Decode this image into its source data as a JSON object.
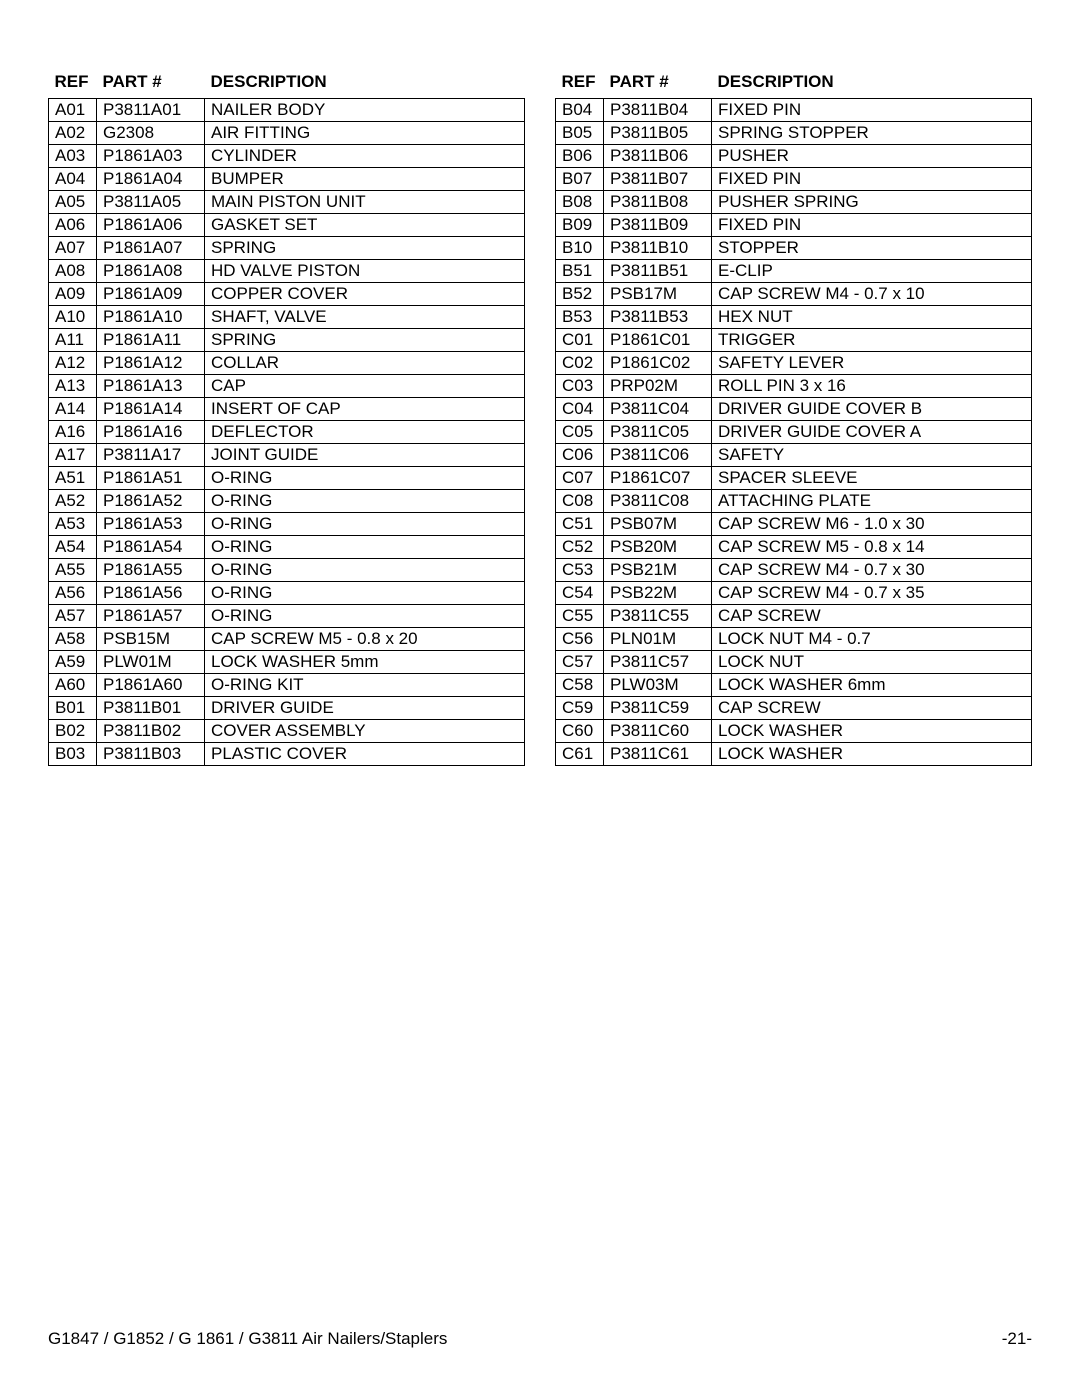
{
  "tables": {
    "left": {
      "headers": [
        "REF",
        "PART #",
        "DESCRIPTION"
      ],
      "rows": [
        [
          "A01",
          "P3811A01",
          "NAILER BODY"
        ],
        [
          "A02",
          "G2308",
          "AIR FITTING"
        ],
        [
          "A03",
          "P1861A03",
          "CYLINDER"
        ],
        [
          "A04",
          "P1861A04",
          "BUMPER"
        ],
        [
          "A05",
          "P3811A05",
          "MAIN PISTON UNIT"
        ],
        [
          "A06",
          "P1861A06",
          "GASKET SET"
        ],
        [
          "A07",
          "P1861A07",
          "SPRING"
        ],
        [
          "A08",
          "P1861A08",
          "HD VALVE PISTON"
        ],
        [
          "A09",
          "P1861A09",
          "COPPER COVER"
        ],
        [
          "A10",
          "P1861A10",
          "SHAFT, VALVE"
        ],
        [
          "A11",
          "P1861A11",
          "SPRING"
        ],
        [
          "A12",
          "P1861A12",
          "COLLAR"
        ],
        [
          "A13",
          "P1861A13",
          "CAP"
        ],
        [
          "A14",
          "P1861A14",
          "INSERT OF CAP"
        ],
        [
          "A16",
          "P1861A16",
          "DEFLECTOR"
        ],
        [
          "A17",
          "P3811A17",
          "JOINT GUIDE"
        ],
        [
          "A51",
          "P1861A51",
          "O-RING"
        ],
        [
          "A52",
          "P1861A52",
          "O-RING"
        ],
        [
          "A53",
          "P1861A53",
          "O-RING"
        ],
        [
          "A54",
          "P1861A54",
          "O-RING"
        ],
        [
          "A55",
          "P1861A55",
          "O-RING"
        ],
        [
          "A56",
          "P1861A56",
          "O-RING"
        ],
        [
          "A57",
          "P1861A57",
          "O-RING"
        ],
        [
          "A58",
          "PSB15M",
          "CAP SCREW M5 - 0.8 x 20"
        ],
        [
          "A59",
          "PLW01M",
          "LOCK WASHER 5mm"
        ],
        [
          "A60",
          "P1861A60",
          "O-RING KIT"
        ],
        [
          "B01",
          "P3811B01",
          "DRIVER GUIDE"
        ],
        [
          "B02",
          "P3811B02",
          "COVER ASSEMBLY"
        ],
        [
          "B03",
          "P3811B03",
          "PLASTIC COVER"
        ]
      ]
    },
    "right": {
      "headers": [
        "REF",
        "PART #",
        "DESCRIPTION"
      ],
      "rows": [
        [
          "B04",
          "P3811B04",
          "FIXED PIN"
        ],
        [
          "B05",
          "P3811B05",
          "SPRING STOPPER"
        ],
        [
          "B06",
          "P3811B06",
          "PUSHER"
        ],
        [
          "B07",
          "P3811B07",
          "FIXED PIN"
        ],
        [
          "B08",
          "P3811B08",
          "PUSHER SPRING"
        ],
        [
          "B09",
          "P3811B09",
          "FIXED PIN"
        ],
        [
          "B10",
          "P3811B10",
          "STOPPER"
        ],
        [
          "B51",
          "P3811B51",
          "E-CLIP"
        ],
        [
          "B52",
          "PSB17M",
          "CAP SCREW M4 - 0.7 x 10"
        ],
        [
          "B53",
          "P3811B53",
          "HEX NUT"
        ],
        [
          "C01",
          "P1861C01",
          "TRIGGER"
        ],
        [
          "C02",
          "P1861C02",
          "SAFETY LEVER"
        ],
        [
          "C03",
          "PRP02M",
          "ROLL PIN 3 x 16"
        ],
        [
          "C04",
          "P3811C04",
          "DRIVER GUIDE COVER B"
        ],
        [
          "C05",
          "P3811C05",
          "DRIVER GUIDE COVER A"
        ],
        [
          "C06",
          "P3811C06",
          "SAFETY"
        ],
        [
          "C07",
          "P1861C07",
          "SPACER SLEEVE"
        ],
        [
          "C08",
          "P3811C08",
          "ATTACHING PLATE"
        ],
        [
          "C51",
          "PSB07M",
          "CAP SCREW M6 - 1.0 x 30"
        ],
        [
          "C52",
          "PSB20M",
          "CAP SCREW M5 - 0.8 x 14"
        ],
        [
          "C53",
          "PSB21M",
          "CAP SCREW M4 - 0.7 x 30"
        ],
        [
          "C54",
          "PSB22M",
          "CAP SCREW M4 - 0.7 x 35"
        ],
        [
          "C55",
          "P3811C55",
          "CAP SCREW"
        ],
        [
          "C56",
          "PLN01M",
          "LOCK NUT M4 - 0.7"
        ],
        [
          "C57",
          "P3811C57",
          "LOCK NUT"
        ],
        [
          "C58",
          "PLW03M",
          "LOCK WASHER 6mm"
        ],
        [
          "C59",
          "P3811C59",
          "CAP SCREW"
        ],
        [
          "C60",
          "P3811C60",
          "LOCK WASHER"
        ],
        [
          "C61",
          "P3811C61",
          "LOCK WASHER"
        ]
      ]
    }
  },
  "footer": {
    "left": "G1847 / G1852 / G 1861 / G3811 Air Nailers/Staplers",
    "right": "-21-"
  }
}
